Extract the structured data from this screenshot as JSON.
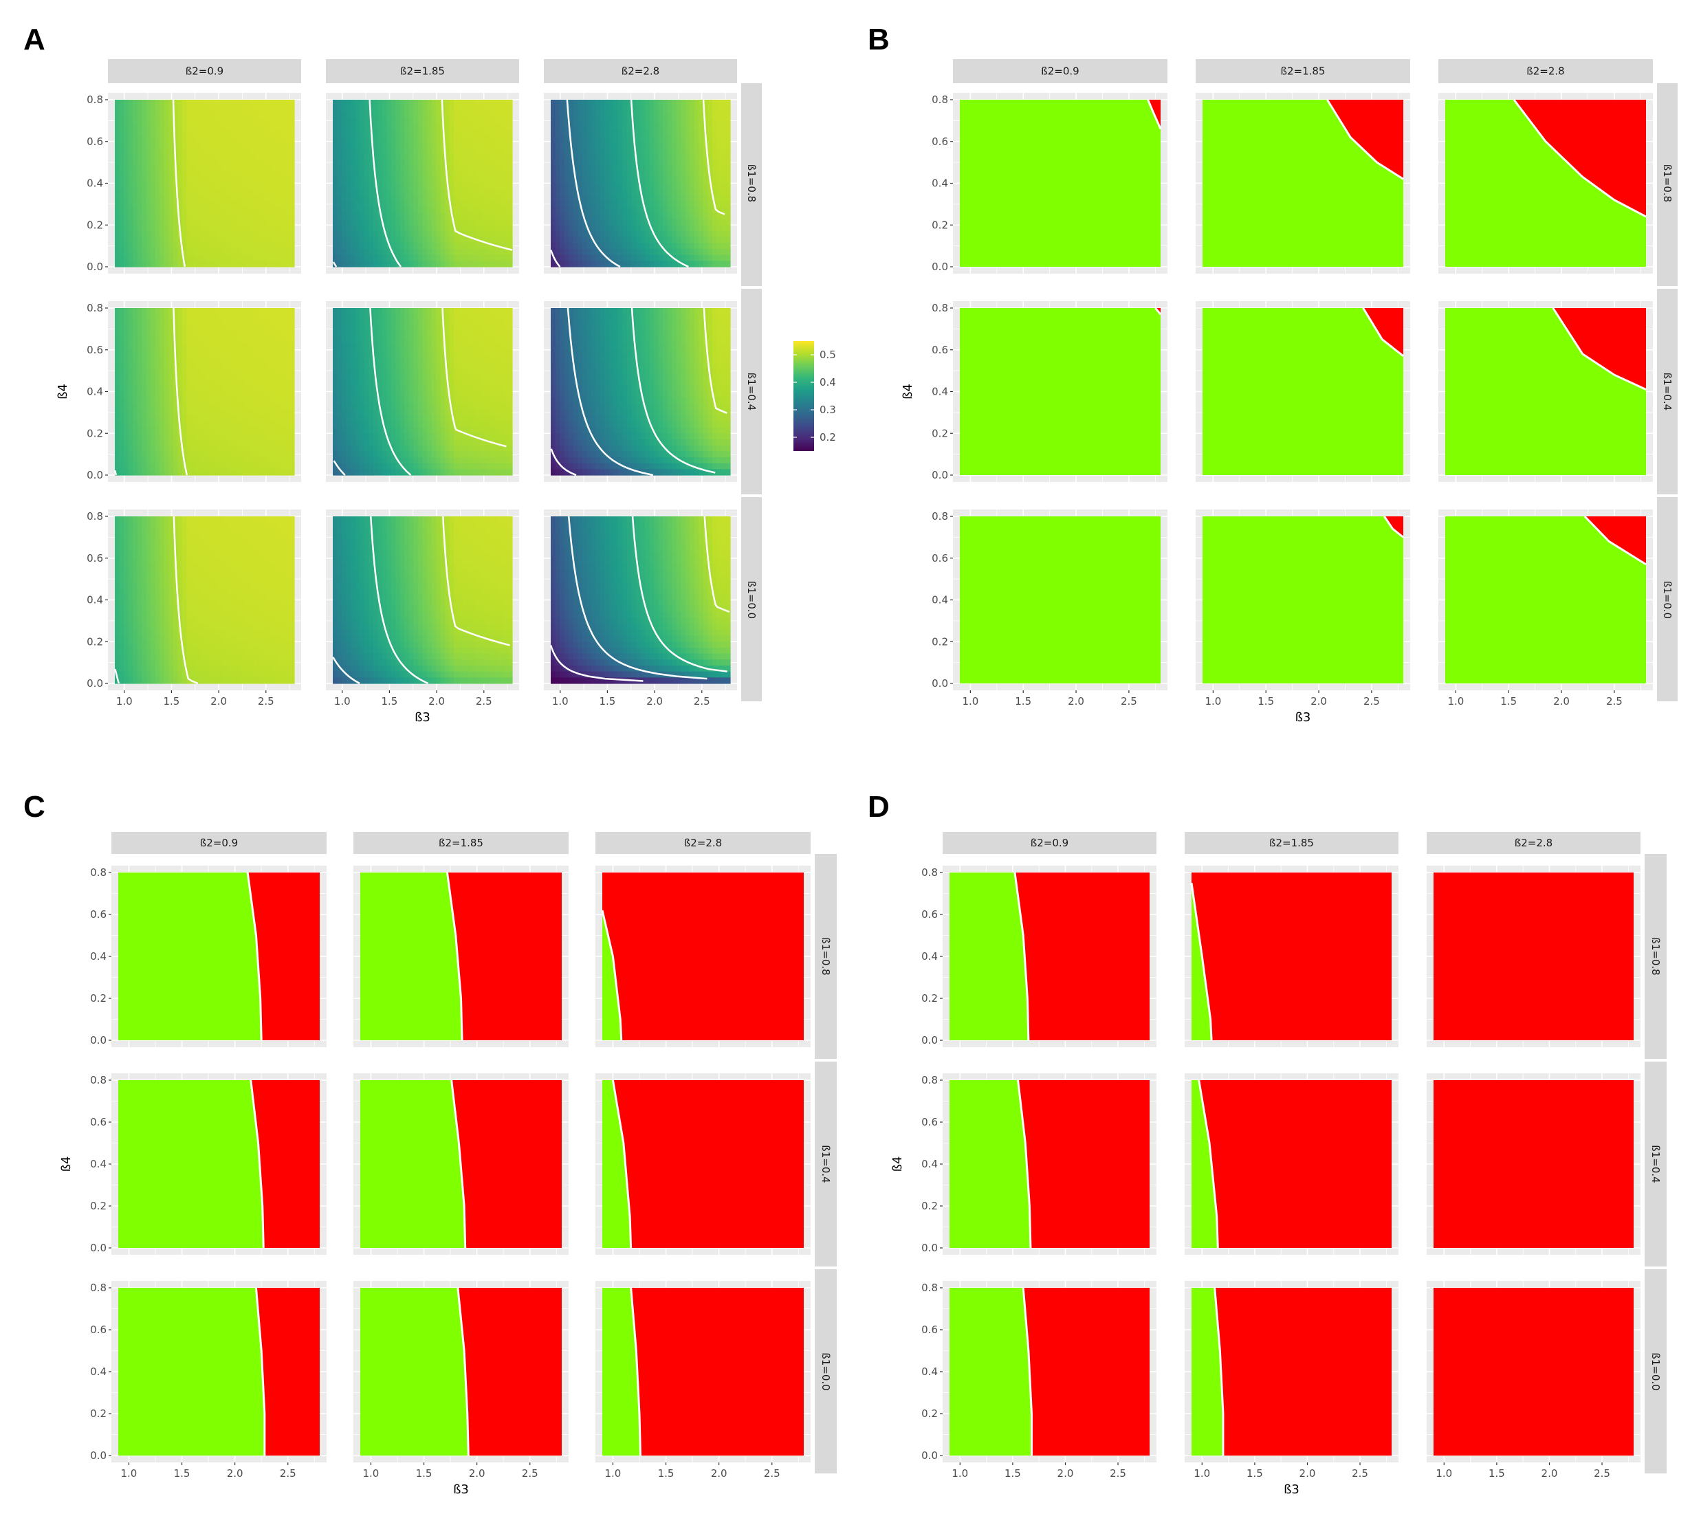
{
  "panels": [
    {
      "letter": "A",
      "mode": "heat"
    },
    {
      "letter": "B",
      "mode": "bin"
    },
    {
      "letter": "C",
      "mode": "bin"
    },
    {
      "letter": "D",
      "mode": "bin"
    }
  ],
  "colors": {
    "green": "#80ff00",
    "red": "#ff0000",
    "contour": "#ffffff",
    "strip": "#d9d9d9",
    "panel_bg": "#ebebeb",
    "grid": "#ffffff",
    "axis_text": "#4d4d4d",
    "viridis": [
      "#440154",
      "#482878",
      "#3e4989",
      "#31688e",
      "#26828e",
      "#1f9e89",
      "#35b779",
      "#6ece58",
      "#b5de2b",
      "#fde725"
    ]
  },
  "chart_data": [
    {
      "panel": "A",
      "type": "heatmap",
      "xlabel": "ß3",
      "ylabel": "ß4",
      "col_facets": [
        "ß2=0.9",
        "ß2=1.85",
        "ß2=2.8"
      ],
      "row_facets": [
        "ß1=0.8",
        "ß1=0.4",
        "ß1=0.0"
      ],
      "xlim": [
        0.9,
        2.8
      ],
      "ylim": [
        0.0,
        0.8
      ],
      "xticks": [
        "1.0",
        "1.5",
        "2.0",
        "2.5"
      ],
      "yticks": [
        "0.0",
        "0.2",
        "0.4",
        "0.6",
        "0.8"
      ],
      "legend": {
        "position": "right",
        "labels": [
          "0.5",
          "0.4",
          "0.3",
          "0.2"
        ],
        "values": [
          0.5,
          0.4,
          0.3,
          0.2
        ],
        "range": [
          0.15,
          0.55
        ]
      },
      "contour_levels": [
        0.2,
        0.3,
        0.4,
        0.5
      ],
      "model": {
        "base": 0.15,
        "amp": 0.4,
        "k": 0.06,
        "c1": 0.35,
        "c2": 0.6,
        "x0": 0.9,
        "xs": [
          1.12,
          0.6,
          0.15
        ],
        "ys": [
          0.35,
          0.1,
          0.0
        ],
        "r": [
          0.1,
          0.05,
          0.0
        ]
      }
    },
    {
      "panel": "B",
      "type": "heatmap",
      "xlabel": "ß3",
      "ylabel": "ß4",
      "col_facets": [
        "ß2=0.9",
        "ß2=1.85",
        "ß2=2.8"
      ],
      "row_facets": [
        "ß1=0.8",
        "ß1=0.4",
        "ß1=0.0"
      ],
      "xlim": [
        0.9,
        2.8
      ],
      "ylim": [
        0.0,
        0.8
      ],
      "xticks": [
        "1.0",
        "1.5",
        "2.0",
        "2.5"
      ],
      "yticks": [
        "0.0",
        "0.2",
        "0.4",
        "0.6",
        "0.8"
      ],
      "regions": "green below boundary, red in upper-right corner",
      "boundaries": [
        [
          [
            [
              2.68,
              0.8
            ],
            [
              2.73,
              0.74
            ],
            [
              2.8,
              0.66
            ]
          ],
          [
            [
              2.08,
              0.8
            ],
            [
              2.3,
              0.62
            ],
            [
              2.55,
              0.5
            ],
            [
              2.8,
              0.42
            ]
          ],
          [
            [
              1.55,
              0.8
            ],
            [
              1.85,
              0.6
            ],
            [
              2.2,
              0.43
            ],
            [
              2.5,
              0.32
            ],
            [
              2.8,
              0.24
            ]
          ]
        ],
        [
          [
            [
              2.75,
              0.8
            ],
            [
              2.8,
              0.77
            ]
          ],
          [
            [
              2.42,
              0.8
            ],
            [
              2.6,
              0.65
            ],
            [
              2.8,
              0.57
            ]
          ],
          [
            [
              1.92,
              0.8
            ],
            [
              2.2,
              0.58
            ],
            [
              2.5,
              0.48
            ],
            [
              2.8,
              0.41
            ]
          ]
        ],
        [
          [],
          [
            [
              2.62,
              0.8
            ],
            [
              2.7,
              0.74
            ],
            [
              2.8,
              0.7
            ]
          ],
          [
            [
              2.22,
              0.8
            ],
            [
              2.45,
              0.68
            ],
            [
              2.8,
              0.57
            ]
          ]
        ]
      ]
    },
    {
      "panel": "C",
      "type": "heatmap",
      "xlabel": "ß3",
      "ylabel": "ß4",
      "col_facets": [
        "ß2=0.9",
        "ß2=1.85",
        "ß2=2.8"
      ],
      "row_facets": [
        "ß1=0.8",
        "ß1=0.4",
        "ß1=0.0"
      ],
      "xlim": [
        0.9,
        2.8
      ],
      "ylim": [
        0.0,
        0.8
      ],
      "xticks": [
        "1.0",
        "1.5",
        "2.0",
        "2.5"
      ],
      "yticks": [
        "0.0",
        "0.2",
        "0.4",
        "0.6",
        "0.8"
      ],
      "regions": "green left of boundary, red right of boundary",
      "boundaries": [
        [
          [
            [
              2.12,
              0.8
            ],
            [
              2.2,
              0.5
            ],
            [
              2.24,
              0.2
            ],
            [
              2.25,
              0.0
            ]
          ],
          [
            [
              1.72,
              0.8
            ],
            [
              1.8,
              0.5
            ],
            [
              1.85,
              0.2
            ],
            [
              1.86,
              0.0
            ]
          ],
          [
            [
              0.9,
              0.62
            ],
            [
              1.0,
              0.4
            ],
            [
              1.07,
              0.1
            ],
            [
              1.08,
              0.0
            ]
          ]
        ],
        [
          [
            [
              2.15,
              0.8
            ],
            [
              2.22,
              0.5
            ],
            [
              2.26,
              0.2
            ],
            [
              2.27,
              0.0
            ]
          ],
          [
            [
              1.76,
              0.8
            ],
            [
              1.83,
              0.5
            ],
            [
              1.88,
              0.2
            ],
            [
              1.89,
              0.0
            ]
          ],
          [
            [
              1.0,
              0.8
            ],
            [
              1.1,
              0.5
            ],
            [
              1.16,
              0.15
            ],
            [
              1.17,
              0.0
            ]
          ]
        ],
        [
          [
            [
              2.2,
              0.8
            ],
            [
              2.25,
              0.5
            ],
            [
              2.28,
              0.2
            ],
            [
              2.28,
              0.0
            ]
          ],
          [
            [
              1.82,
              0.8
            ],
            [
              1.88,
              0.5
            ],
            [
              1.91,
              0.2
            ],
            [
              1.92,
              0.0
            ]
          ],
          [
            [
              1.17,
              0.8
            ],
            [
              1.22,
              0.5
            ],
            [
              1.25,
              0.2
            ],
            [
              1.26,
              0.0
            ]
          ]
        ]
      ]
    },
    {
      "panel": "D",
      "type": "heatmap",
      "xlabel": "ß3",
      "ylabel": "ß4",
      "col_facets": [
        "ß2=0.9",
        "ß2=1.85",
        "ß2=2.8"
      ],
      "row_facets": [
        "ß1=0.8",
        "ß1=0.4",
        "ß1=0.0"
      ],
      "xlim": [
        0.9,
        2.8
      ],
      "ylim": [
        0.0,
        0.8
      ],
      "xticks": [
        "1.0",
        "1.5",
        "2.0",
        "2.5"
      ],
      "yticks": [
        "0.0",
        "0.2",
        "0.4",
        "0.6",
        "0.8"
      ],
      "regions": "green left of boundary, red right of boundary",
      "boundaries": [
        [
          [
            [
              1.52,
              0.8
            ],
            [
              1.6,
              0.5
            ],
            [
              1.64,
              0.2
            ],
            [
              1.65,
              0.0
            ]
          ],
          [
            [
              0.9,
              0.75
            ],
            [
              1.0,
              0.4
            ],
            [
              1.08,
              0.1
            ],
            [
              1.09,
              0.0
            ]
          ],
          []
        ],
        [
          [
            [
              1.55,
              0.8
            ],
            [
              1.62,
              0.5
            ],
            [
              1.66,
              0.2
            ],
            [
              1.67,
              0.0
            ]
          ],
          [
            [
              0.97,
              0.8
            ],
            [
              1.07,
              0.5
            ],
            [
              1.14,
              0.15
            ],
            [
              1.15,
              0.0
            ]
          ],
          []
        ],
        [
          [
            [
              1.6,
              0.8
            ],
            [
              1.65,
              0.5
            ],
            [
              1.68,
              0.2
            ],
            [
              1.68,
              0.0
            ]
          ],
          [
            [
              1.12,
              0.8
            ],
            [
              1.17,
              0.5
            ],
            [
              1.2,
              0.2
            ],
            [
              1.2,
              0.0
            ]
          ],
          []
        ]
      ]
    }
  ]
}
